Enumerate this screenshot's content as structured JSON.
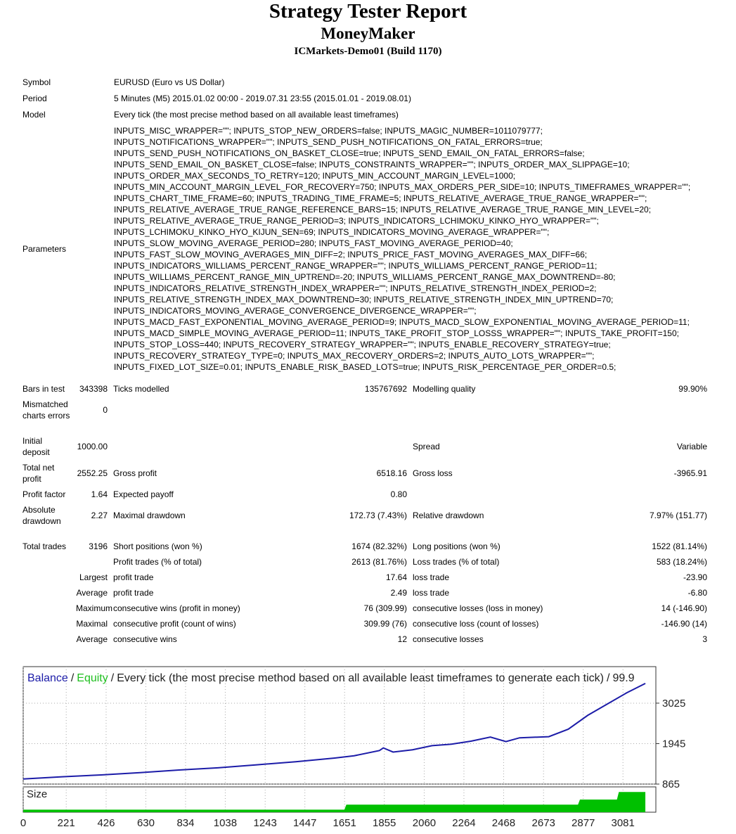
{
  "header": {
    "title": "Strategy Tester Report",
    "subtitle": "MoneyMaker",
    "build": "ICMarkets-Demo01 (Build 1170)"
  },
  "info": {
    "symbol": {
      "label": "Symbol",
      "value": "EURUSD (Euro vs US Dollar)"
    },
    "period": {
      "label": "Period",
      "value": "5 Minutes (M5) 2015.01.02 00:00 - 2019.07.31 23:55 (2015.01.01 - 2019.08.01)"
    },
    "model": {
      "label": "Model",
      "value": "Every tick (the most precise method based on all available least timeframes)"
    },
    "parameters": {
      "label": "Parameters",
      "lines": [
        "INPUTS_MISC_WRAPPER=\"\"; INPUTS_STOP_NEW_ORDERS=false; INPUTS_MAGIC_NUMBER=1011079777;",
        "INPUTS_NOTIFICATIONS_WRAPPER=\"\"; INPUTS_SEND_PUSH_NOTIFICATIONS_ON_FATAL_ERRORS=true;",
        "INPUTS_SEND_PUSH_NOTIFICATIONS_ON_BASKET_CLOSE=true; INPUTS_SEND_EMAIL_ON_FATAL_ERRORS=false;",
        "INPUTS_SEND_EMAIL_ON_BASKET_CLOSE=false; INPUTS_CONSTRAINTS_WRAPPER=\"\"; INPUTS_ORDER_MAX_SLIPPAGE=10;",
        "INPUTS_ORDER_MAX_SECONDS_TO_RETRY=120; INPUTS_MIN_ACCOUNT_MARGIN_LEVEL=1000;",
        "INPUTS_MIN_ACCOUNT_MARGIN_LEVEL_FOR_RECOVERY=750; INPUTS_MAX_ORDERS_PER_SIDE=10; INPUTS_TIMEFRAMES_WRAPPER=\"\";",
        "INPUTS_CHART_TIME_FRAME=60; INPUTS_TRADING_TIME_FRAME=5; INPUTS_RELATIVE_AVERAGE_TRUE_RANGE_WRAPPER=\"\";",
        "INPUTS_RELATIVE_AVERAGE_TRUE_RANGE_REFERENCE_BARS=15; INPUTS_RELATIVE_AVERAGE_TRUE_RANGE_MIN_LEVEL=20;",
        "INPUTS_RELATIVE_AVERAGE_TRUE_RANGE_PERIOD=3; INPUTS_INDICATORS_LCHIMOKU_KINKO_HYO_WRAPPER=\"\";",
        "INPUTS_LCHIMOKU_KINKO_HYO_KIJUN_SEN=69; INPUTS_INDICATORS_MOVING_AVERAGE_WRAPPER=\"\";",
        "INPUTS_SLOW_MOVING_AVERAGE_PERIOD=280; INPUTS_FAST_MOVING_AVERAGE_PERIOD=40;",
        "INPUTS_FAST_SLOW_MOVING_AVERAGES_MIN_DIFF=2; INPUTS_PRICE_FAST_MOVING_AVERAGES_MAX_DIFF=66;",
        "INPUTS_INDICATORS_WILLIAMS_PERCENT_RANGE_WRAPPER=\"\"; INPUTS_WILLIAMS_PERCENT_RANGE_PERIOD=11;",
        "INPUTS_WILLIAMS_PERCENT_RANGE_MIN_UPTREND=-20; INPUTS_WILLIAMS_PERCENT_RANGE_MAX_DOWNTREND=-80;",
        "INPUTS_INDICATORS_RELATIVE_STRENGTH_INDEX_WRAPPER=\"\"; INPUTS_RELATIVE_STRENGTH_INDEX_PERIOD=2;",
        "INPUTS_RELATIVE_STRENGTH_INDEX_MAX_DOWNTREND=30; INPUTS_RELATIVE_STRENGTH_INDEX_MIN_UPTREND=70;",
        "INPUTS_INDICATORS_MOVING_AVERAGE_CONVERGENCE_DIVERGENCE_WRAPPER=\"\";",
        "INPUTS_MACD_FAST_EXPONENTIAL_MOVING_AVERAGE_PERIOD=9; INPUTS_MACD_SLOW_EXPONENTIAL_MOVING_AVERAGE_PERIOD=11;",
        "INPUTS_MACD_SIMPLE_MOVING_AVERAGE_PERIOD=11; INPUTS_TAKE_PROFIT_STOP_LOSSS_WRAPPER=\"\"; INPUTS_TAKE_PROFIT=150;",
        "INPUTS_STOP_LOSS=440; INPUTS_RECOVERY_STRATEGY_WRAPPER=\"\"; INPUTS_ENABLE_RECOVERY_STRATEGY=true;",
        "INPUTS_RECOVERY_STRATEGY_TYPE=0; INPUTS_MAX_RECOVERY_ORDERS=2; INPUTS_AUTO_LOTS_WRAPPER=\"\";",
        "INPUTS_FIXED_LOT_SIZE=0.01; INPUTS_ENABLE_RISK_BASED_LOTS=true; INPUTS_RISK_PERCENTAGE_PER_ORDER=0.5;"
      ]
    }
  },
  "stats": [
    [
      [
        "Bars in test",
        "343398",
        "Ticks modelled",
        "135767692",
        "Modelling quality",
        "99.90%"
      ],
      [
        "Mismatched charts errors",
        "0",
        null,
        null,
        null,
        null
      ]
    ],
    [
      [
        "Initial deposit",
        "1000.00",
        null,
        null,
        "Spread",
        "Variable"
      ],
      [
        "Total net profit",
        "2552.25",
        "Gross profit",
        "6518.16",
        "Gross loss",
        "-3965.91"
      ],
      [
        "Profit factor",
        "1.64",
        "Expected payoff",
        "0.80",
        null,
        null
      ],
      [
        "Absolute drawdown",
        "2.27",
        "Maximal drawdown",
        "172.73 (7.43%)",
        "Relative drawdown",
        "7.97% (151.77)"
      ]
    ],
    [
      [
        "Total trades",
        "3196",
        "Short positions (won %)",
        "1674 (82.32%)",
        "Long positions (won %)",
        "1522 (81.14%)"
      ],
      [
        null,
        null,
        "Profit trades (% of total)",
        "2613 (81.76%)",
        "Loss trades (% of total)",
        "583 (18.24%)"
      ],
      [
        null,
        "Largest",
        "profit trade",
        "17.64",
        "loss trade",
        "-23.90"
      ],
      [
        null,
        "Average",
        "profit trade",
        "2.49",
        "loss trade",
        "-6.80"
      ],
      [
        null,
        "Maximum",
        "consecutive wins (profit in money)",
        "76 (309.99)",
        "consecutive losses (loss in money)",
        "14 (-146.90)"
      ],
      [
        null,
        "Maximal",
        "consecutive profit (count of wins)",
        "309.99 (76)",
        "consecutive loss (count of losses)",
        "-146.90 (14)"
      ],
      [
        null,
        "Average",
        "consecutive wins",
        "12",
        "consecutive losses",
        "3"
      ]
    ]
  ],
  "chart_data": {
    "type": "line",
    "legend": {
      "separator": "/",
      "items": [
        {
          "text": "Balance",
          "color": "#1c1ca8"
        },
        {
          "text": "Equity",
          "color": "#1fbf1f"
        },
        {
          "text": "Every tick (the most precise method based on all available least timeframes to generate each tick)",
          "color": "#222222"
        },
        {
          "text": "99.9",
          "color": "#222222"
        }
      ]
    },
    "xlim": [
      0,
      3250
    ],
    "xticks": [
      0,
      221,
      426,
      630,
      834,
      1038,
      1243,
      1447,
      1651,
      1855,
      2060,
      2264,
      2468,
      2673,
      2877,
      3081
    ],
    "ylim": [
      865,
      4000
    ],
    "yticks": [
      865,
      1945,
      3025
    ],
    "grid": true,
    "series": [
      {
        "name": "Balance",
        "color": "#1c1ca8",
        "x": [
          0,
          200,
          400,
          600,
          800,
          1000,
          1200,
          1400,
          1600,
          1700,
          1830,
          1850,
          1900,
          2000,
          2100,
          2200,
          2300,
          2400,
          2480,
          2550,
          2700,
          2800,
          2900,
          3000,
          3100,
          3196
        ],
        "values": [
          1000,
          1060,
          1110,
          1170,
          1240,
          1300,
          1380,
          1460,
          1560,
          1620,
          1760,
          1830,
          1720,
          1780,
          1890,
          1930,
          2010,
          2120,
          2000,
          2100,
          2130,
          2330,
          2700,
          3000,
          3300,
          3552
        ]
      }
    ],
    "size": {
      "label": "Size",
      "color": "#00c000",
      "ylim": [
        0,
        0.1
      ],
      "x": [
        0,
        1650,
        1660,
        2850,
        2860,
        3050,
        3060,
        3196
      ],
      "values": [
        0.01,
        0.01,
        0.03,
        0.03,
        0.05,
        0.05,
        0.08,
        0.08
      ]
    }
  }
}
